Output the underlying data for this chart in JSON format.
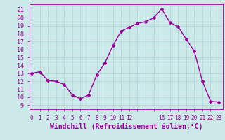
{
  "x": [
    0,
    1,
    2,
    3,
    4,
    5,
    6,
    7,
    8,
    9,
    10,
    11,
    12,
    13,
    14,
    15,
    16,
    17,
    18,
    19,
    20,
    21,
    22,
    23
  ],
  "y": [
    13,
    13.2,
    12.1,
    12,
    11.6,
    10.3,
    9.8,
    10.3,
    12.8,
    14.3,
    16.5,
    18.3,
    18.8,
    19.3,
    19.5,
    20,
    21.1,
    19.4,
    18.9,
    17.3,
    15.8,
    12,
    9.5,
    9.4
  ],
  "line_color": "#990099",
  "marker": "D",
  "marker_size": 2,
  "linewidth": 1.0,
  "bg_color": "#cce8e8",
  "grid_color": "#b0d8d8",
  "xlabel": "Windchill (Refroidissement éolien,°C)",
  "xlabel_fontsize": 7,
  "tick_label_color": "#990099",
  "ylim": [
    8.5,
    21.7
  ],
  "yticks": [
    9,
    10,
    11,
    12,
    13,
    14,
    15,
    16,
    17,
    18,
    19,
    20,
    21
  ],
  "xtick_all": [
    0,
    1,
    2,
    3,
    4,
    5,
    6,
    7,
    8,
    9,
    10,
    11,
    12,
    13,
    14,
    15,
    16,
    17,
    18,
    19,
    20,
    21,
    22,
    23
  ],
  "xtick_labels_visible": [
    0,
    1,
    2,
    3,
    4,
    5,
    6,
    7,
    8,
    9,
    10,
    11,
    12,
    16,
    17,
    18,
    19,
    20,
    21,
    22,
    23
  ],
  "xlim": [
    -0.3,
    23.5
  ]
}
